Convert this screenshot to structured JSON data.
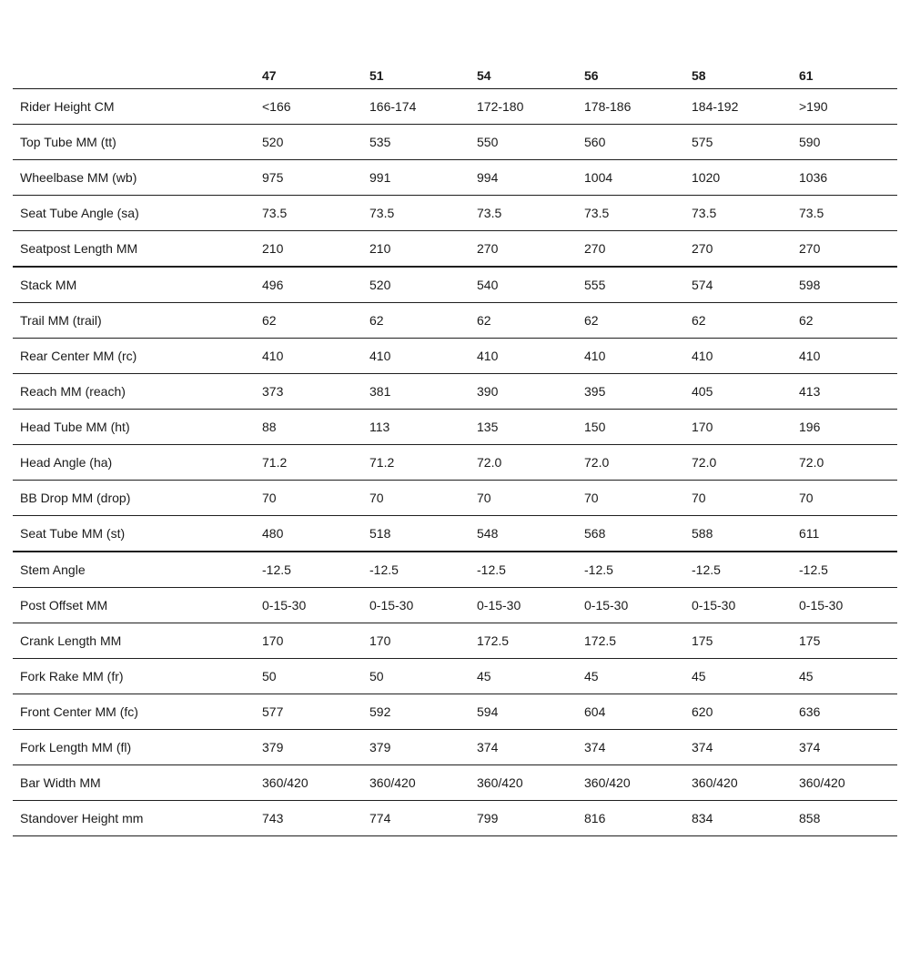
{
  "chart_data": {
    "type": "table",
    "title": "",
    "corner_label": "",
    "columns": [
      "47",
      "51",
      "54",
      "56",
      "58",
      "61"
    ],
    "rows": [
      {
        "label": "Rider Height CM",
        "values": [
          "<166",
          "166-174",
          "172-180",
          "178-186",
          "184-192",
          ">190"
        ],
        "group_end": false
      },
      {
        "label": "Top Tube MM (tt)",
        "values": [
          "520",
          "535",
          "550",
          "560",
          "575",
          "590"
        ],
        "group_end": false
      },
      {
        "label": "Wheelbase MM (wb)",
        "values": [
          "975",
          "991",
          "994",
          "1004",
          "1020",
          "1036"
        ],
        "group_end": false
      },
      {
        "label": "Seat Tube Angle (sa)",
        "values": [
          "73.5",
          "73.5",
          "73.5",
          "73.5",
          "73.5",
          "73.5"
        ],
        "group_end": false
      },
      {
        "label": "Seatpost Length MM",
        "values": [
          "210",
          "210",
          "270",
          "270",
          "270",
          "270"
        ],
        "group_end": true
      },
      {
        "label": "Stack MM",
        "values": [
          "496",
          "520",
          "540",
          "555",
          "574",
          "598"
        ],
        "group_end": false
      },
      {
        "label": "Trail MM (trail)",
        "values": [
          "62",
          "62",
          "62",
          "62",
          "62",
          "62"
        ],
        "group_end": false
      },
      {
        "label": "Rear Center MM (rc)",
        "values": [
          "410",
          "410",
          "410",
          "410",
          "410",
          "410"
        ],
        "group_end": false
      },
      {
        "label": "Reach MM (reach)",
        "values": [
          "373",
          "381",
          "390",
          "395",
          "405",
          "413"
        ],
        "group_end": false
      },
      {
        "label": "Head Tube MM (ht)",
        "values": [
          "88",
          "113",
          "135",
          "150",
          "170",
          "196"
        ],
        "group_end": false
      },
      {
        "label": "Head Angle (ha)",
        "values": [
          "71.2",
          "71.2",
          "72.0",
          "72.0",
          "72.0",
          "72.0"
        ],
        "group_end": false
      },
      {
        "label": "BB Drop MM (drop)",
        "values": [
          "70",
          "70",
          "70",
          "70",
          "70",
          "70"
        ],
        "group_end": false
      },
      {
        "label": "Seat Tube MM (st)",
        "values": [
          "480",
          "518",
          "548",
          "568",
          "588",
          "611"
        ],
        "group_end": true
      },
      {
        "label": "Stem Angle",
        "values": [
          "-12.5",
          "-12.5",
          "-12.5",
          "-12.5",
          "-12.5",
          "-12.5"
        ],
        "group_end": false
      },
      {
        "label": "Post Offset MM",
        "values": [
          "0-15-30",
          "0-15-30",
          "0-15-30",
          "0-15-30",
          "0-15-30",
          "0-15-30"
        ],
        "group_end": false
      },
      {
        "label": "Crank Length MM",
        "values": [
          "170",
          "170",
          "172.5",
          "172.5",
          "175",
          "175"
        ],
        "group_end": false
      },
      {
        "label": "Fork Rake MM (fr)",
        "values": [
          "50",
          "50",
          "45",
          "45",
          "45",
          "45"
        ],
        "group_end": false
      },
      {
        "label": "Front Center MM (fc)",
        "values": [
          "577",
          "592",
          "594",
          "604",
          "620",
          "636"
        ],
        "group_end": false
      },
      {
        "label": "Fork Length MM (fl)",
        "values": [
          "379",
          "379",
          "374",
          "374",
          "374",
          "374"
        ],
        "group_end": false
      },
      {
        "label": "Bar Width MM",
        "values": [
          "360/420",
          "360/420",
          "360/420",
          "360/420",
          "360/420",
          "360/420"
        ],
        "group_end": false
      },
      {
        "label": "Standover Height mm",
        "values": [
          "743",
          "774",
          "799",
          "816",
          "834",
          "858"
        ],
        "group_end": false
      }
    ],
    "layout": {
      "grid": "horizontal-row-dividers-only",
      "header_position": "top",
      "label_column_position": "left"
    },
    "colors": {
      "text": "#1a1a1a",
      "divider": "#1f1f1f",
      "background": "#ffffff"
    }
  }
}
